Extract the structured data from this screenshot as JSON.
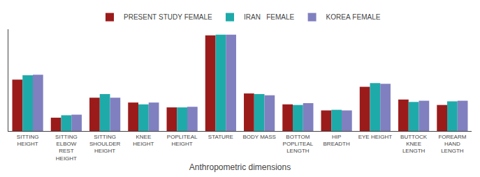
{
  "chart_data": {
    "type": "bar",
    "xlabel": "Anthropometric dimensions",
    "categories": [
      "SITTING\nHEIGHT",
      "SITTING\nELBOW\nREST\nHEIGHT",
      "SITTING\nSHOULDER\nHEIGHT",
      "KNEE\nHEIGHT",
      "POPLITEAL\nHEIGHT",
      "STATURE",
      "BODY MASS",
      "BOTTOM\nPOPLITEAL\nLENGTH",
      "HIP\nBREADTH",
      "EYE HEIGHT",
      "BUTTOCK\nKNEE\nLENGTH",
      "FOREARM\nHAND\nLENGTH"
    ],
    "series": [
      {
        "name": "PRESENT STUDY FEMALE",
        "color": "#9B1B1B",
        "values": [
          85,
          22,
          55,
          47,
          39,
          158,
          62,
          44,
          34,
          73,
          52,
          43
        ]
      },
      {
        "name": "IRAN   FEMALE",
        "color": "#1FAAAA",
        "values": [
          92,
          26,
          61,
          44,
          39,
          159,
          61,
          43,
          35,
          79,
          48,
          49
        ]
      },
      {
        "name": "KOREA FEMALE",
        "color": "#8080C0",
        "values": [
          93,
          27,
          55,
          47,
          40,
          159,
          59,
          46,
          34,
          78,
          50,
          50
        ]
      }
    ],
    "ylim": [
      0,
      168
    ],
    "yticks": [],
    "tick_labels": "x",
    "grid": false,
    "legend": "top"
  }
}
